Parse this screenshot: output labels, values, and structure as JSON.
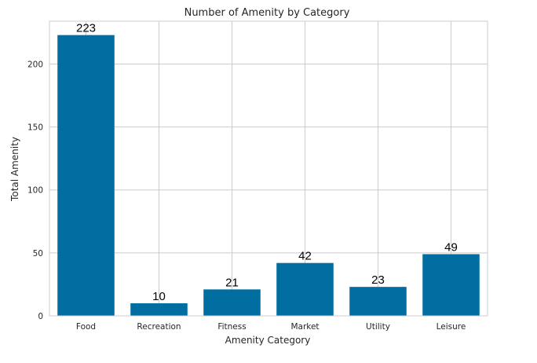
{
  "chart_data": {
    "type": "bar",
    "title": "Number of Amenity by Category",
    "xlabel": "Amenity Category",
    "ylabel": "Total Amenity",
    "categories": [
      "Food",
      "Recreation",
      "Fitness",
      "Market",
      "Utility",
      "Leisure"
    ],
    "values": [
      223,
      10,
      21,
      42,
      23,
      49
    ],
    "data_labels": [
      "223",
      "10",
      "21",
      "42",
      "23",
      "49"
    ],
    "ylim": [
      0,
      234
    ],
    "yticks": [
      0,
      50,
      100,
      150,
      200
    ],
    "grid": true,
    "legend": "none",
    "bar_color": "#006ea0"
  }
}
